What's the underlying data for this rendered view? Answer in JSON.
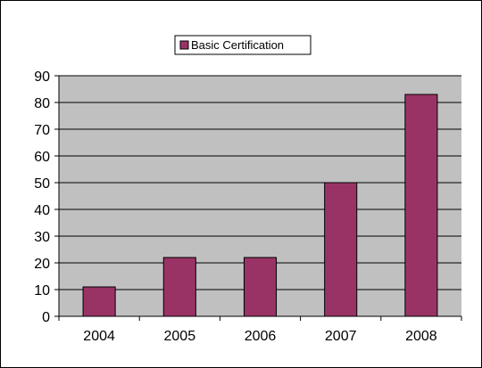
{
  "chart_data": {
    "type": "bar",
    "categories": [
      "2004",
      "2005",
      "2006",
      "2007",
      "2008"
    ],
    "series": [
      {
        "name": "Basic Certification",
        "values": [
          11,
          22,
          22,
          50,
          83
        ],
        "color": "#993366"
      }
    ],
    "title": "",
    "xlabel": "",
    "ylabel": "",
    "ylim": [
      0,
      90
    ],
    "yticks": [
      "0",
      "10",
      "20",
      "30",
      "40",
      "50",
      "60",
      "70",
      "80",
      "90"
    ],
    "grid": true,
    "plot_background": "#c0c0c0",
    "legend_position": "top-center"
  }
}
